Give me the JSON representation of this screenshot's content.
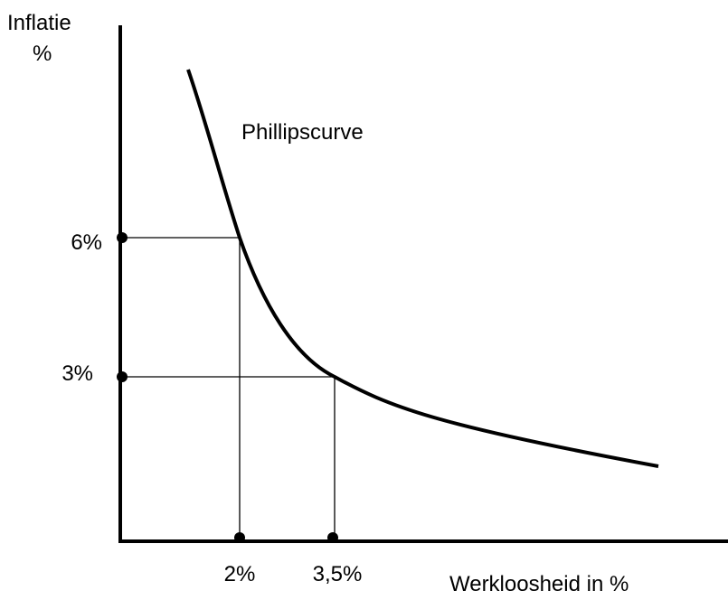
{
  "y_axis_label": [
    "Inflatie",
    "%"
  ],
  "x_axis_label": "Werkloosheid in %",
  "curve_label": "Phillipscurve",
  "y_ticks": [
    "6%",
    "3%"
  ],
  "x_ticks": [
    "2%",
    "3,5%"
  ]
}
